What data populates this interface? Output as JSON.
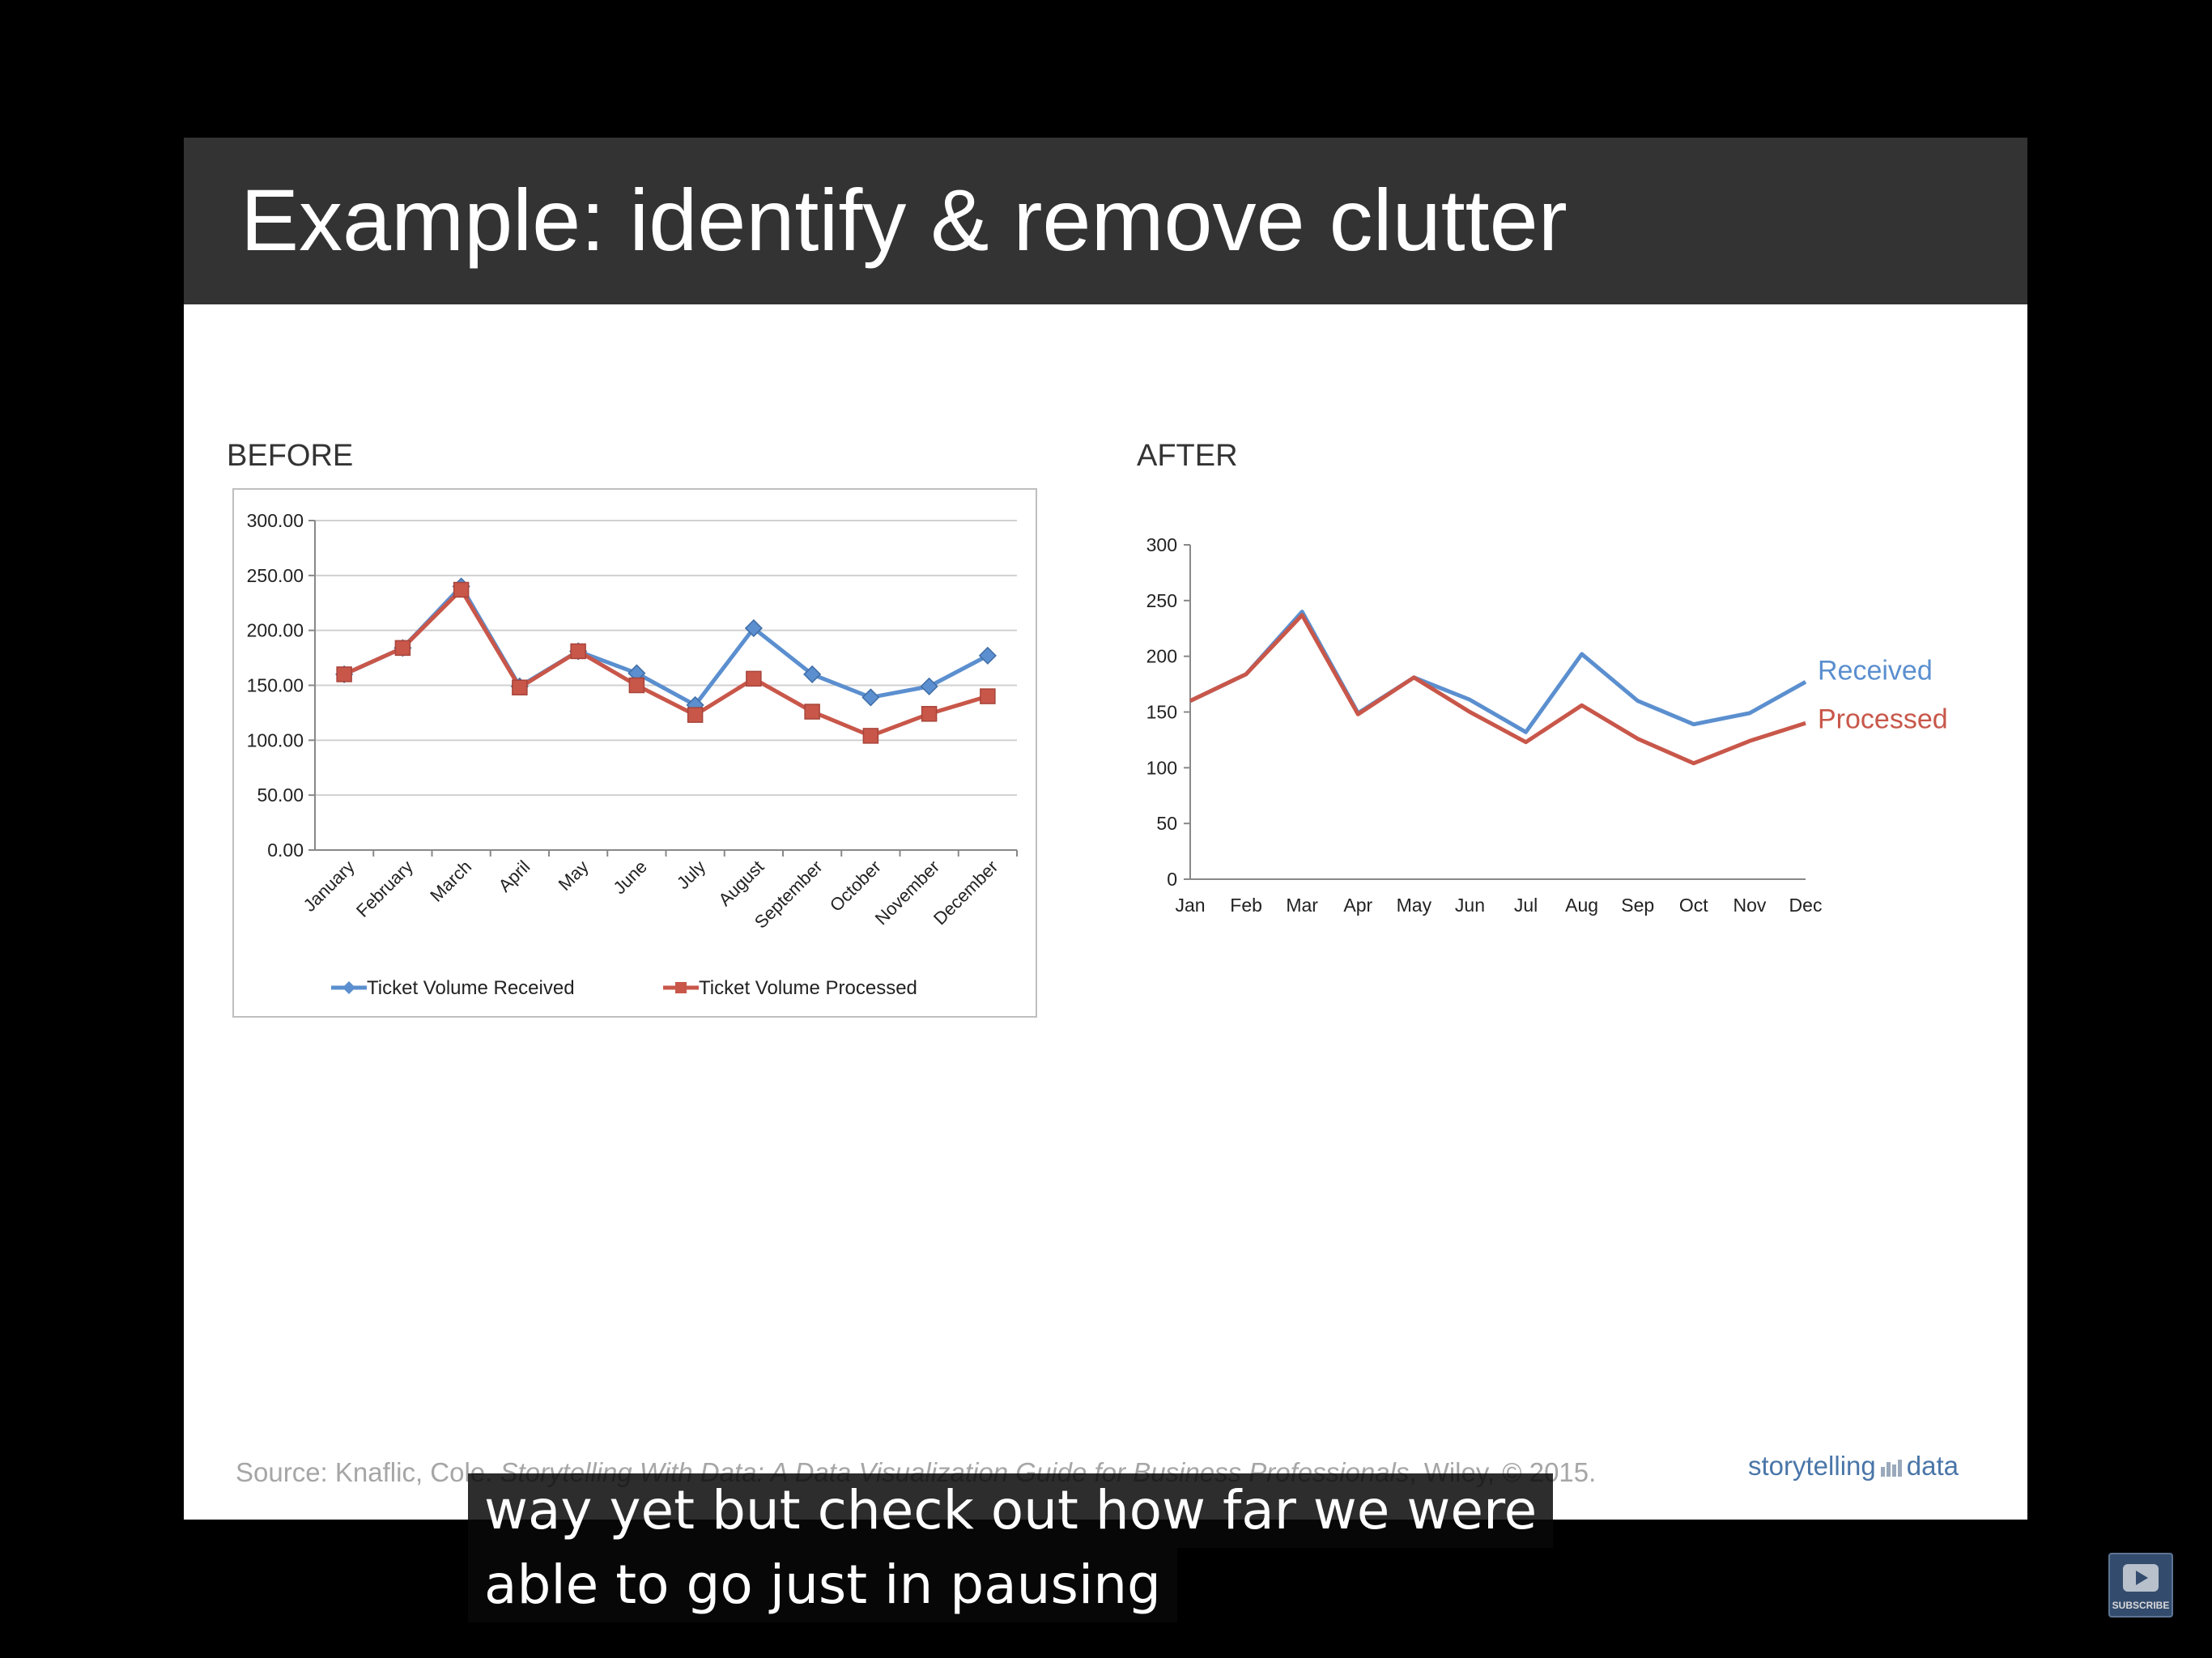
{
  "slide": {
    "title": "Example: identify & remove clutter",
    "before_heading": "BEFORE",
    "after_heading": "AFTER",
    "source_prefix": "Source: Knaflic, Cole. ",
    "source_title": "Storytelling With Data: A Data Visualization Guide for Business Professionals",
    "source_suffix": ", Wiley, © 2015.",
    "brand_left": "storytelling",
    "brand_right": "data"
  },
  "caption": {
    "line1": "way yet but check out how far we were",
    "line2": "able to go just in pausing"
  },
  "subscribe": {
    "label": "SUBSCRIBE",
    "icon": "play-icon"
  },
  "colors": {
    "received": "#5b8fcf",
    "processed": "#c8574a",
    "title_bar": "#333333"
  },
  "chart_data": [
    {
      "type": "line",
      "name": "BEFORE",
      "categories": [
        "January",
        "February",
        "March",
        "April",
        "May",
        "June",
        "July",
        "August",
        "September",
        "October",
        "November",
        "December"
      ],
      "y_ticks": [
        "300.00",
        "250.00",
        "200.00",
        "150.00",
        "100.00",
        "50.00",
        "0.00"
      ],
      "ylim": [
        0,
        300
      ],
      "grid": true,
      "legend": "bottom",
      "markers": true,
      "series": [
        {
          "name": "Ticket Volume Received",
          "values": [
            160,
            184,
            240,
            149,
            181,
            161,
            132,
            202,
            160,
            139,
            149,
            177
          ]
        },
        {
          "name": "Ticket Volume Processed",
          "values": [
            160,
            184,
            237,
            148,
            181,
            150,
            123,
            156,
            126,
            104,
            124,
            140
          ]
        }
      ]
    },
    {
      "type": "line",
      "name": "AFTER",
      "categories": [
        "Jan",
        "Feb",
        "Mar",
        "Apr",
        "May",
        "Jun",
        "Jul",
        "Aug",
        "Sep",
        "Oct",
        "Nov",
        "Dec"
      ],
      "y_ticks": [
        "300",
        "250",
        "200",
        "150",
        "100",
        "50",
        "0"
      ],
      "ylim": [
        0,
        300
      ],
      "grid": false,
      "legend": "direct labels at right",
      "markers": false,
      "series": [
        {
          "name": "Received",
          "values": [
            160,
            184,
            240,
            149,
            181,
            161,
            132,
            202,
            160,
            139,
            149,
            177
          ]
        },
        {
          "name": "Processed",
          "values": [
            160,
            184,
            237,
            148,
            181,
            150,
            123,
            156,
            126,
            104,
            124,
            140
          ]
        }
      ]
    }
  ]
}
